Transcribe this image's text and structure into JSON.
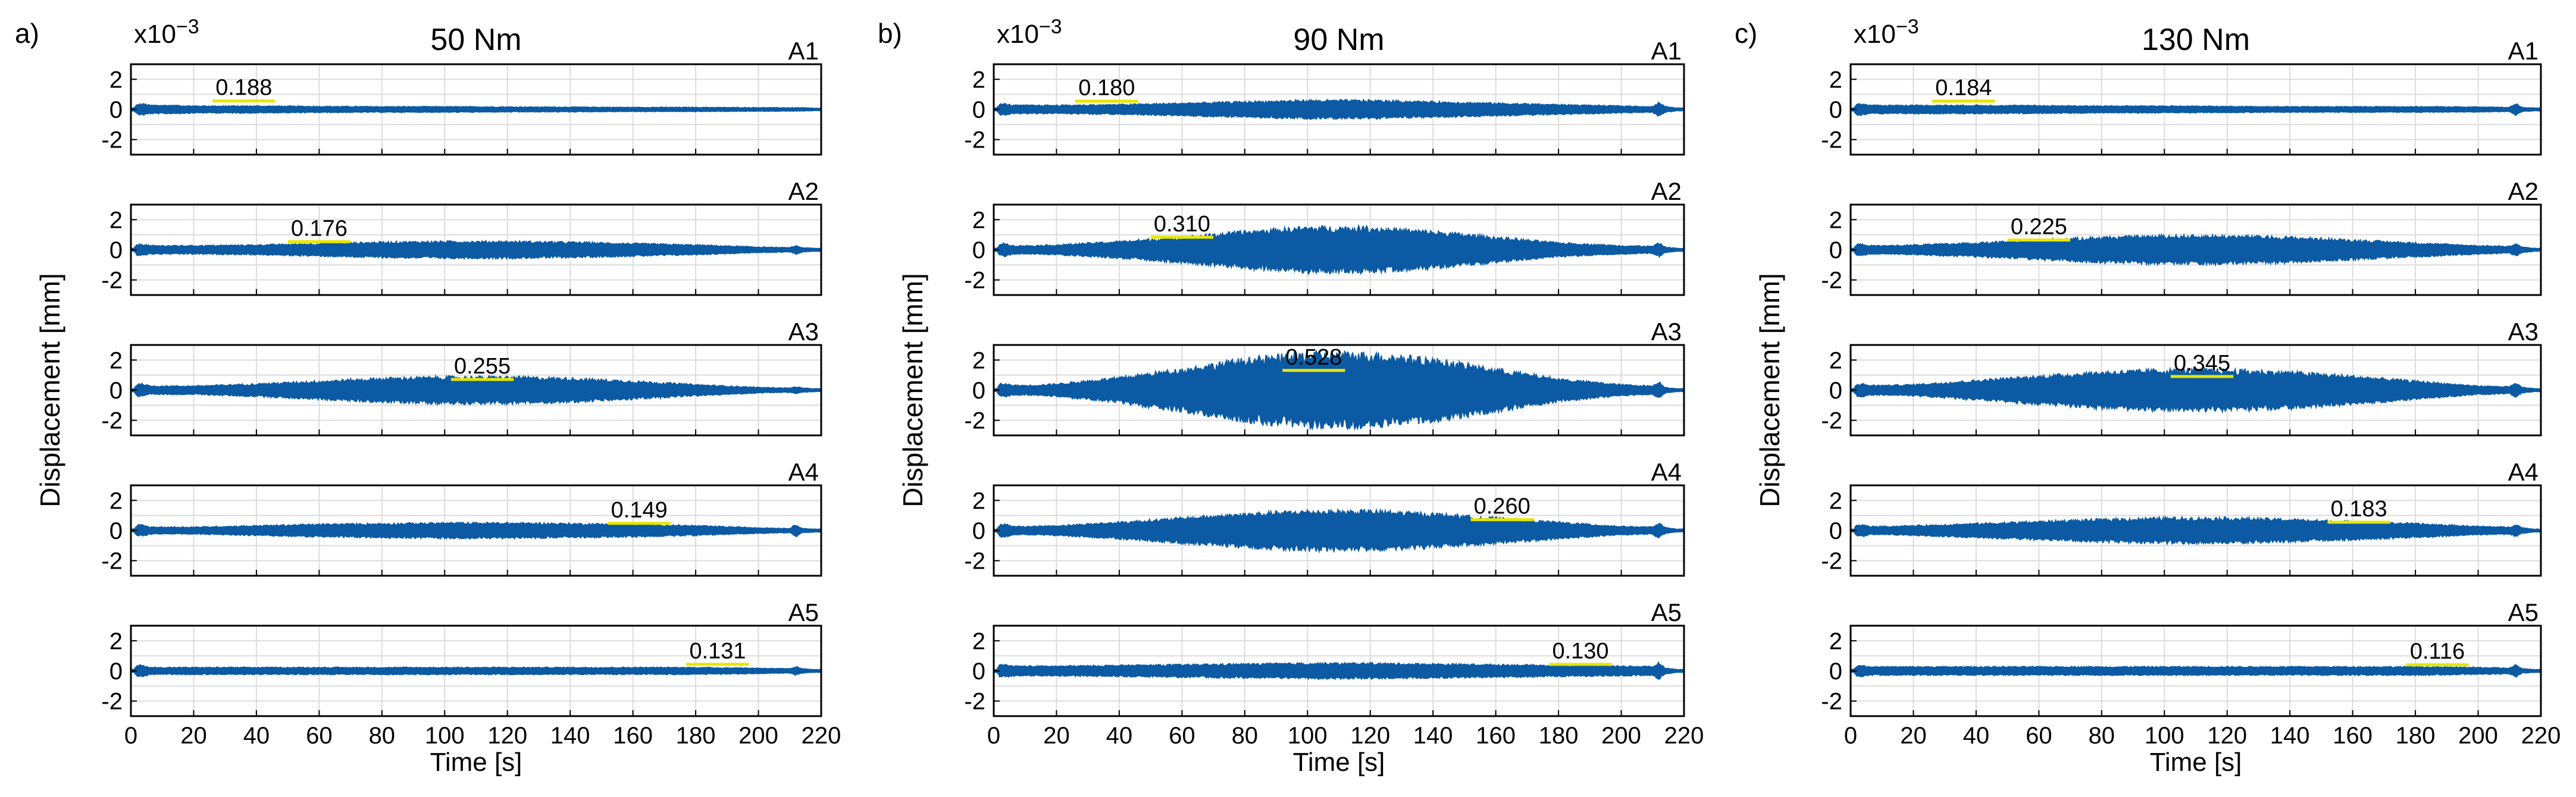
{
  "chart_data": [
    {
      "type": "line",
      "label": "a)",
      "title": "50 Nm",
      "exponent_label": "x10",
      "exponent_power": "−3",
      "xlabel": "Time [s]",
      "ylabel": "Displacement [mm]",
      "xlim": [
        0,
        220
      ],
      "ylim": [
        -3,
        3
      ],
      "xticks": [
        "0",
        "20",
        "40",
        "60",
        "80",
        "100",
        "120",
        "140",
        "160",
        "180",
        "200",
        "220"
      ],
      "yticks": [
        "2",
        "0",
        "-2"
      ],
      "series_color": "#0b5aa3",
      "marker_color": "#e6e600",
      "axes": [
        {
          "name": "A1",
          "rms_label": "0.188",
          "rms": 0.188,
          "window": [
            26,
            46
          ],
          "envelope": {
            "t": [
              1,
              2,
              4,
              6,
              12,
              20,
              40,
              60,
              80,
              100,
              120,
              140,
              160,
              180,
              200,
              210,
              212,
              214,
              218,
              220
            ],
            "amp": [
              0.1,
              0.35,
              0.4,
              0.3,
              0.3,
              0.25,
              0.25,
              0.22,
              0.2,
              0.2,
              0.18,
              0.17,
              0.15,
              0.15,
              0.13,
              0.12,
              0.12,
              0.12,
              0.08,
              0.08
            ]
          }
        },
        {
          "name": "A2",
          "rms_label": "0.176",
          "rms": 0.176,
          "window": [
            50,
            70
          ],
          "envelope": {
            "t": [
              1,
              2,
              4,
              6,
              12,
              20,
              40,
              60,
              80,
              100,
              120,
              140,
              160,
              180,
              200,
              210,
              212,
              214,
              218,
              220
            ],
            "amp": [
              0.1,
              0.4,
              0.4,
              0.3,
              0.3,
              0.3,
              0.35,
              0.45,
              0.55,
              0.6,
              0.6,
              0.55,
              0.45,
              0.35,
              0.2,
              0.15,
              0.3,
              0.15,
              0.1,
              0.1
            ]
          }
        },
        {
          "name": "A3",
          "rms_label": "0.255",
          "rms": 0.255,
          "window": [
            102,
            122
          ],
          "envelope": {
            "t": [
              1,
              2,
              4,
              6,
              12,
              20,
              40,
              60,
              80,
              100,
              120,
              140,
              160,
              180,
              200,
              210,
              212,
              214,
              218,
              220
            ],
            "amp": [
              0.1,
              0.45,
              0.45,
              0.3,
              0.3,
              0.3,
              0.45,
              0.65,
              0.85,
              0.95,
              0.95,
              0.85,
              0.65,
              0.4,
              0.2,
              0.15,
              0.25,
              0.15,
              0.1,
              0.1
            ]
          }
        },
        {
          "name": "A4",
          "rms_label": "0.149",
          "rms": 0.149,
          "window": [
            152,
            172
          ],
          "envelope": {
            "t": [
              1,
              2,
              4,
              6,
              12,
              20,
              40,
              60,
              80,
              100,
              120,
              140,
              160,
              180,
              200,
              210,
              212,
              214,
              218,
              220
            ],
            "amp": [
              0.1,
              0.4,
              0.4,
              0.25,
              0.25,
              0.25,
              0.35,
              0.45,
              0.5,
              0.55,
              0.55,
              0.5,
              0.45,
              0.35,
              0.2,
              0.15,
              0.45,
              0.15,
              0.1,
              0.1
            ]
          }
        },
        {
          "name": "A5",
          "rms_label": "0.131",
          "rms": 0.131,
          "window": [
            177,
            197
          ],
          "envelope": {
            "t": [
              1,
              2,
              4,
              6,
              12,
              20,
              40,
              60,
              80,
              100,
              120,
              140,
              160,
              180,
              200,
              210,
              212,
              214,
              218,
              220
            ],
            "amp": [
              0.1,
              0.4,
              0.4,
              0.25,
              0.25,
              0.25,
              0.25,
              0.25,
              0.25,
              0.25,
              0.25,
              0.25,
              0.25,
              0.25,
              0.2,
              0.15,
              0.3,
              0.15,
              0.1,
              0.1
            ]
          }
        }
      ]
    },
    {
      "type": "line",
      "label": "b)",
      "title": "90 Nm",
      "exponent_label": "x10",
      "exponent_power": "−3",
      "xlabel": "Time [s]",
      "ylabel": "Displacement [mm]",
      "xlim": [
        0,
        220
      ],
      "ylim": [
        -3,
        3
      ],
      "xticks": [
        "0",
        "20",
        "40",
        "60",
        "80",
        "100",
        "120",
        "140",
        "160",
        "180",
        "200",
        "220"
      ],
      "yticks": [
        "2",
        "0",
        "-2"
      ],
      "series_color": "#0b5aa3",
      "marker_color": "#e6e600",
      "axes": [
        {
          "name": "A1",
          "rms_label": "0.180",
          "rms": 0.18,
          "window": [
            26,
            46
          ],
          "envelope": {
            "t": [
              1,
              2,
              4,
              6,
              12,
              20,
              40,
              60,
              80,
              100,
              120,
              140,
              160,
              180,
              200,
              210,
              212,
              214,
              218,
              220
            ],
            "amp": [
              0.1,
              0.4,
              0.4,
              0.3,
              0.3,
              0.3,
              0.35,
              0.45,
              0.55,
              0.65,
              0.65,
              0.55,
              0.45,
              0.35,
              0.25,
              0.2,
              0.5,
              0.2,
              0.1,
              0.1
            ]
          }
        },
        {
          "name": "A2",
          "rms_label": "0.310",
          "rms": 0.31,
          "window": [
            50,
            70
          ],
          "envelope": {
            "t": [
              1,
              2,
              4,
              6,
              12,
              20,
              40,
              60,
              80,
              100,
              120,
              140,
              160,
              180,
              200,
              210,
              212,
              214,
              218,
              220
            ],
            "amp": [
              0.1,
              0.45,
              0.45,
              0.3,
              0.3,
              0.35,
              0.6,
              0.9,
              1.3,
              1.6,
              1.6,
              1.3,
              0.9,
              0.5,
              0.3,
              0.25,
              0.5,
              0.2,
              0.1,
              0.1
            ]
          }
        },
        {
          "name": "A3",
          "rms_label": "0.528",
          "rms": 0.528,
          "window": [
            92,
            112
          ],
          "envelope": {
            "t": [
              1,
              2,
              4,
              6,
              12,
              20,
              40,
              60,
              80,
              100,
              120,
              140,
              160,
              180,
              200,
              210,
              212,
              214,
              218,
              220
            ],
            "amp": [
              0.1,
              0.45,
              0.45,
              0.35,
              0.35,
              0.45,
              0.9,
              1.5,
              2.2,
              2.6,
              2.6,
              2.2,
              1.5,
              0.8,
              0.4,
              0.3,
              0.6,
              0.2,
              0.1,
              0.1
            ]
          }
        },
        {
          "name": "A4",
          "rms_label": "0.260",
          "rms": 0.26,
          "window": [
            152,
            172
          ],
          "envelope": {
            "t": [
              1,
              2,
              4,
              6,
              12,
              20,
              40,
              60,
              80,
              100,
              120,
              140,
              160,
              180,
              200,
              210,
              212,
              214,
              218,
              220
            ],
            "amp": [
              0.1,
              0.45,
              0.45,
              0.3,
              0.3,
              0.35,
              0.6,
              0.9,
              1.2,
              1.4,
              1.4,
              1.2,
              0.9,
              0.6,
              0.3,
              0.25,
              0.55,
              0.2,
              0.1,
              0.1
            ]
          }
        },
        {
          "name": "A5",
          "rms_label": "0.130",
          "rms": 0.13,
          "window": [
            177,
            197
          ],
          "envelope": {
            "t": [
              1,
              2,
              4,
              6,
              12,
              20,
              40,
              60,
              80,
              100,
              120,
              140,
              160,
              180,
              200,
              210,
              212,
              214,
              218,
              220
            ],
            "amp": [
              0.1,
              0.45,
              0.45,
              0.35,
              0.35,
              0.35,
              0.4,
              0.45,
              0.5,
              0.55,
              0.55,
              0.5,
              0.45,
              0.4,
              0.35,
              0.3,
              0.6,
              0.2,
              0.1,
              0.1
            ]
          }
        }
      ]
    },
    {
      "type": "line",
      "label": "c)",
      "title": "130 Nm",
      "exponent_label": "x10",
      "exponent_power": "−3",
      "xlabel": "Time [s]",
      "ylabel": "Displacement [mm]",
      "xlim": [
        0,
        220
      ],
      "ylim": [
        -3,
        3
      ],
      "xticks": [
        "0",
        "20",
        "40",
        "60",
        "80",
        "100",
        "120",
        "140",
        "160",
        "180",
        "200",
        "220"
      ],
      "yticks": [
        "2",
        "0",
        "-2"
      ],
      "series_color": "#0b5aa3",
      "marker_color": "#e6e600",
      "axes": [
        {
          "name": "A1",
          "rms_label": "0.184",
          "rms": 0.184,
          "window": [
            26,
            46
          ],
          "envelope": {
            "t": [
              1,
              2,
              4,
              6,
              12,
              20,
              40,
              60,
              80,
              100,
              120,
              140,
              160,
              180,
              200,
              210,
              212,
              214,
              218,
              220
            ],
            "amp": [
              0.1,
              0.4,
              0.4,
              0.3,
              0.3,
              0.3,
              0.3,
              0.28,
              0.25,
              0.25,
              0.22,
              0.2,
              0.2,
              0.2,
              0.18,
              0.15,
              0.45,
              0.15,
              0.1,
              0.1
            ]
          }
        },
        {
          "name": "A2",
          "rms_label": "0.225",
          "rms": 0.225,
          "window": [
            50,
            70
          ],
          "envelope": {
            "t": [
              1,
              2,
              4,
              6,
              12,
              20,
              40,
              60,
              80,
              100,
              120,
              140,
              160,
              180,
              200,
              210,
              212,
              214,
              218,
              220
            ],
            "amp": [
              0.1,
              0.4,
              0.4,
              0.3,
              0.3,
              0.35,
              0.5,
              0.7,
              0.9,
              1.0,
              1.0,
              0.9,
              0.7,
              0.5,
              0.3,
              0.25,
              0.45,
              0.2,
              0.1,
              0.1
            ]
          }
        },
        {
          "name": "A3",
          "rms_label": "0.345",
          "rms": 0.345,
          "window": [
            102,
            122
          ],
          "envelope": {
            "t": [
              1,
              2,
              4,
              6,
              12,
              20,
              40,
              60,
              80,
              100,
              120,
              140,
              160,
              180,
              200,
              210,
              212,
              214,
              218,
              220
            ],
            "amp": [
              0.1,
              0.45,
              0.45,
              0.35,
              0.35,
              0.4,
              0.7,
              1.0,
              1.3,
              1.45,
              1.45,
              1.3,
              1.0,
              0.65,
              0.3,
              0.25,
              0.5,
              0.2,
              0.1,
              0.1
            ]
          }
        },
        {
          "name": "A4",
          "rms_label": "0.183",
          "rms": 0.183,
          "window": [
            152,
            172
          ],
          "envelope": {
            "t": [
              1,
              2,
              4,
              6,
              12,
              20,
              40,
              60,
              80,
              100,
              120,
              140,
              160,
              180,
              200,
              210,
              212,
              214,
              218,
              220
            ],
            "amp": [
              0.1,
              0.4,
              0.4,
              0.3,
              0.3,
              0.35,
              0.5,
              0.65,
              0.8,
              0.9,
              0.9,
              0.8,
              0.65,
              0.5,
              0.3,
              0.25,
              0.45,
              0.2,
              0.1,
              0.1
            ]
          }
        },
        {
          "name": "A5",
          "rms_label": "0.116",
          "rms": 0.116,
          "window": [
            177,
            197
          ],
          "envelope": {
            "t": [
              1,
              2,
              4,
              6,
              12,
              20,
              40,
              60,
              80,
              100,
              120,
              140,
              160,
              180,
              200,
              210,
              212,
              214,
              218,
              220
            ],
            "amp": [
              0.1,
              0.4,
              0.4,
              0.3,
              0.3,
              0.3,
              0.3,
              0.3,
              0.3,
              0.3,
              0.3,
              0.3,
              0.3,
              0.3,
              0.25,
              0.2,
              0.45,
              0.15,
              0.1,
              0.1
            ]
          }
        }
      ]
    }
  ]
}
